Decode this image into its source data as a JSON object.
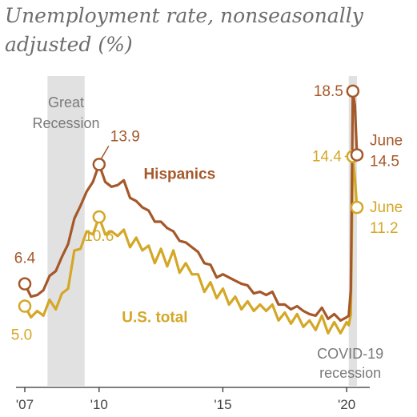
{
  "title_lines": [
    "Unemployment rate, nonseasonally",
    "adjusted (%)"
  ],
  "chart_data": {
    "type": "line",
    "title": "Unemployment rate, nonseasonally adjusted (%)",
    "xlabel": "",
    "ylabel": "",
    "x_range": [
      "2007-01",
      "2020-06"
    ],
    "ylim": [
      0,
      20
    ],
    "grid": false,
    "x_tick_labels": [
      {
        "date": "2007-01",
        "label": "'07"
      },
      {
        "date": "2010-01",
        "label": "'10"
      },
      {
        "date": "2015-01",
        "label": "'15"
      },
      {
        "date": "2020-01",
        "label": "'20"
      }
    ],
    "recessions": [
      {
        "start": "2007-12",
        "end": "2009-06",
        "label_lines": [
          "Great",
          "Recession"
        ]
      },
      {
        "start": "2020-02",
        "end": "2020-06",
        "label_lines": [
          "COVID-19",
          "recession"
        ]
      }
    ],
    "series": [
      {
        "name": "Hispanics",
        "color": "#a5582a",
        "points": [
          [
            "2007-01",
            6.4
          ],
          [
            "2007-04",
            5.6
          ],
          [
            "2007-07",
            5.7
          ],
          [
            "2007-10",
            6.0
          ],
          [
            "2008-01",
            6.9
          ],
          [
            "2008-04",
            7.2
          ],
          [
            "2008-07",
            8.1
          ],
          [
            "2008-10",
            8.9
          ],
          [
            "2009-01",
            10.5
          ],
          [
            "2009-04",
            11.3
          ],
          [
            "2009-07",
            12.2
          ],
          [
            "2009-10",
            12.8
          ],
          [
            "2010-01",
            13.9
          ],
          [
            "2010-04",
            12.8
          ],
          [
            "2010-07",
            12.5
          ],
          [
            "2010-10",
            12.6
          ],
          [
            "2011-01",
            12.9
          ],
          [
            "2011-04",
            11.8
          ],
          [
            "2011-07",
            11.6
          ],
          [
            "2011-10",
            11.2
          ],
          [
            "2012-01",
            11.0
          ],
          [
            "2012-04",
            10.3
          ],
          [
            "2012-07",
            10.3
          ],
          [
            "2012-10",
            9.9
          ],
          [
            "2013-01",
            9.7
          ],
          [
            "2013-04",
            9.1
          ],
          [
            "2013-07",
            9.0
          ],
          [
            "2013-10",
            8.7
          ],
          [
            "2014-01",
            8.4
          ],
          [
            "2014-04",
            7.7
          ],
          [
            "2014-07",
            7.6
          ],
          [
            "2014-10",
            6.8
          ],
          [
            "2015-01",
            7.0
          ],
          [
            "2015-04",
            6.8
          ],
          [
            "2015-07",
            6.6
          ],
          [
            "2015-10",
            6.4
          ],
          [
            "2016-01",
            6.3
          ],
          [
            "2016-04",
            5.8
          ],
          [
            "2016-07",
            5.9
          ],
          [
            "2016-10",
            5.7
          ],
          [
            "2017-01",
            5.9
          ],
          [
            "2017-04",
            5.1
          ],
          [
            "2017-07",
            5.1
          ],
          [
            "2017-10",
            4.8
          ],
          [
            "2018-01",
            5.0
          ],
          [
            "2018-04",
            4.7
          ],
          [
            "2018-07",
            4.5
          ],
          [
            "2018-10",
            4.4
          ],
          [
            "2019-01",
            4.9
          ],
          [
            "2019-04",
            4.2
          ],
          [
            "2019-07",
            4.5
          ],
          [
            "2019-10",
            4.1
          ],
          [
            "2020-01",
            4.3
          ],
          [
            "2020-02",
            4.4
          ],
          [
            "2020-03",
            6.0
          ],
          [
            "2020-04",
            18.5
          ],
          [
            "2020-05",
            17.6
          ],
          [
            "2020-06",
            14.5
          ]
        ]
      },
      {
        "name": "U.S. total",
        "color": "#d4a726",
        "points": [
          [
            "2007-01",
            5.0
          ],
          [
            "2007-04",
            4.3
          ],
          [
            "2007-07",
            4.7
          ],
          [
            "2007-10",
            4.4
          ],
          [
            "2008-01",
            5.4
          ],
          [
            "2008-04",
            4.8
          ],
          [
            "2008-07",
            5.8
          ],
          [
            "2008-10",
            6.1
          ],
          [
            "2009-01",
            8.5
          ],
          [
            "2009-04",
            8.6
          ],
          [
            "2009-07",
            9.7
          ],
          [
            "2009-10",
            9.5
          ],
          [
            "2010-01",
            10.6
          ],
          [
            "2010-04",
            9.5
          ],
          [
            "2010-07",
            9.7
          ],
          [
            "2010-10",
            9.4
          ],
          [
            "2011-01",
            9.8
          ],
          [
            "2011-04",
            8.7
          ],
          [
            "2011-07",
            9.3
          ],
          [
            "2011-10",
            8.5
          ],
          [
            "2012-01",
            8.8
          ],
          [
            "2012-04",
            7.7
          ],
          [
            "2012-07",
            8.6
          ],
          [
            "2012-10",
            7.5
          ],
          [
            "2013-01",
            8.5
          ],
          [
            "2013-04",
            7.1
          ],
          [
            "2013-07",
            7.7
          ],
          [
            "2013-10",
            7.0
          ],
          [
            "2014-01",
            7.0
          ],
          [
            "2014-04",
            5.9
          ],
          [
            "2014-07",
            6.5
          ],
          [
            "2014-10",
            5.5
          ],
          [
            "2015-01",
            6.1
          ],
          [
            "2015-04",
            5.1
          ],
          [
            "2015-07",
            5.6
          ],
          [
            "2015-10",
            4.8
          ],
          [
            "2016-01",
            5.3
          ],
          [
            "2016-04",
            4.7
          ],
          [
            "2016-07",
            5.1
          ],
          [
            "2016-10",
            4.7
          ],
          [
            "2017-01",
            5.1
          ],
          [
            "2017-04",
            4.1
          ],
          [
            "2017-07",
            4.6
          ],
          [
            "2017-10",
            3.9
          ],
          [
            "2018-01",
            4.5
          ],
          [
            "2018-04",
            3.7
          ],
          [
            "2018-07",
            4.1
          ],
          [
            "2018-10",
            3.5
          ],
          [
            "2019-01",
            4.4
          ],
          [
            "2019-04",
            3.3
          ],
          [
            "2019-07",
            4.0
          ],
          [
            "2019-10",
            3.3
          ],
          [
            "2020-01",
            4.0
          ],
          [
            "2020-02",
            3.8
          ],
          [
            "2020-03",
            4.5
          ],
          [
            "2020-04",
            14.4
          ],
          [
            "2020-05",
            13.0
          ],
          [
            "2020-06",
            11.2
          ]
        ]
      }
    ],
    "annotations": [
      {
        "series": "Hispanics",
        "date": "2007-01",
        "text": "6.4"
      },
      {
        "series": "U.S. total",
        "date": "2007-01",
        "text": "5.0"
      },
      {
        "series": "Hispanics",
        "date": "2010-01",
        "text": "13.9"
      },
      {
        "series": "U.S. total",
        "date": "2010-01",
        "text": "10.6"
      },
      {
        "series": "Hispanics",
        "date": "2020-04",
        "text": "18.5"
      },
      {
        "series": "U.S. total",
        "date": "2020-04",
        "text": "14.4"
      },
      {
        "series": "Hispanics",
        "date": "2020-06",
        "text_lines": [
          "June",
          "14.5"
        ]
      },
      {
        "series": "U.S. total",
        "date": "2020-06",
        "text_lines": [
          "June",
          "11.2"
        ]
      }
    ],
    "series_labels": [
      {
        "series": "Hispanics",
        "text": "Hispanics"
      },
      {
        "series": "U.S. total",
        "text": "U.S. total"
      }
    ]
  }
}
